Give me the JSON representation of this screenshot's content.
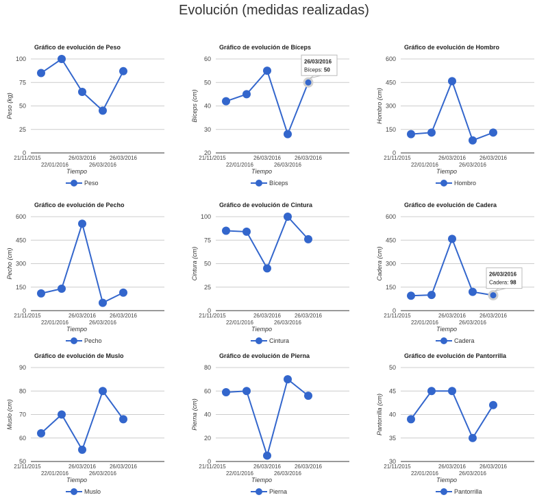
{
  "page_title": "Evolución (medidas realizadas)",
  "x_label": "Tiempo",
  "series_color": "#3366cc",
  "chart_data": [
    {
      "type": "line",
      "title": "Gráfico de evolución de Peso",
      "ylabel": "Peso (kg)",
      "series_name": "Peso",
      "x": [
        "21/11/2015",
        "22/01/2016",
        "26/03/2016",
        "26/03/2016",
        "26/03/2016"
      ],
      "values": [
        85,
        100,
        65,
        45,
        87
      ],
      "yticks": [
        0,
        25,
        50,
        75,
        100
      ],
      "ylim": [
        0,
        100
      ],
      "tooltip": null
    },
    {
      "type": "line",
      "title": "Gráfico de evolución de Bíceps",
      "ylabel": "Bíceps (cm)",
      "series_name": "Bíceps",
      "x": [
        "21/11/2015",
        "22/01/2016",
        "26/03/2016",
        "26/03/2016",
        "26/03/2016"
      ],
      "values": [
        42,
        45,
        55,
        28,
        50
      ],
      "yticks": [
        20,
        30,
        40,
        50,
        60
      ],
      "ylim": [
        20,
        60
      ],
      "tooltip": {
        "date": "26/03/2016",
        "label": "Bíceps",
        "value": "50",
        "index": 4
      }
    },
    {
      "type": "line",
      "title": "Gráfico de evolución de Hombro",
      "ylabel": "Hombro (cm)",
      "series_name": "Hombro",
      "x": [
        "21/11/2015",
        "22/01/2016",
        "26/03/2016",
        "26/03/2016",
        "26/03/2016"
      ],
      "values": [
        120,
        130,
        458,
        80,
        130
      ],
      "yticks": [
        0,
        150,
        300,
        450,
        600
      ],
      "ylim": [
        0,
        600
      ],
      "tooltip": null
    },
    {
      "type": "line",
      "title": "Gráfico de evolución de Pecho",
      "ylabel": "Pecho (cm)",
      "series_name": "Pecho",
      "x": [
        "21/11/2015",
        "22/01/2016",
        "26/03/2016",
        "26/03/2016",
        "26/03/2016"
      ],
      "values": [
        110,
        140,
        555,
        50,
        115
      ],
      "yticks": [
        0,
        150,
        300,
        450,
        600
      ],
      "ylim": [
        0,
        600
      ],
      "tooltip": null
    },
    {
      "type": "line",
      "title": "Gráfico de evolución de Cintura",
      "ylabel": "Cintura (cm)",
      "series_name": "Cintura",
      "x": [
        "21/11/2015",
        "22/01/2016",
        "26/03/2016",
        "26/03/2016",
        "26/03/2016"
      ],
      "values": [
        85,
        84,
        45,
        100,
        76
      ],
      "yticks": [
        0,
        25,
        50,
        75,
        100
      ],
      "ylim": [
        0,
        100
      ],
      "tooltip": null
    },
    {
      "type": "line",
      "title": "Gráfico de evolución de Cadera",
      "ylabel": "Cadera (cm)",
      "series_name": "Cadera",
      "x": [
        "21/11/2015",
        "22/01/2016",
        "26/03/2016",
        "26/03/2016",
        "26/03/2016"
      ],
      "values": [
        95,
        100,
        458,
        120,
        98
      ],
      "yticks": [
        0,
        150,
        300,
        450,
        600
      ],
      "ylim": [
        0,
        600
      ],
      "tooltip": {
        "date": "26/03/2016",
        "label": "Cadera",
        "value": "98",
        "index": 4
      }
    },
    {
      "type": "line",
      "title": "Gráfico de evolución de Muslo",
      "ylabel": "Muslo (cm)",
      "series_name": "Muslo",
      "x": [
        "21/11/2015",
        "22/01/2016",
        "26/03/2016",
        "26/03/2016",
        "26/03/2016"
      ],
      "values": [
        62,
        70,
        55,
        80,
        68
      ],
      "yticks": [
        50,
        60,
        70,
        80,
        90
      ],
      "ylim": [
        50,
        90
      ],
      "tooltip": null
    },
    {
      "type": "line",
      "title": "Gráfico de evolución de Pierna",
      "ylabel": "Pierna (cm)",
      "series_name": "Pierna",
      "x": [
        "21/11/2015",
        "22/01/2016",
        "26/03/2016",
        "26/03/2016",
        "26/03/2016"
      ],
      "values": [
        59,
        60,
        5,
        70,
        56
      ],
      "yticks": [
        0,
        20,
        40,
        60,
        80
      ],
      "ylim": [
        0,
        80
      ],
      "tooltip": null
    },
    {
      "type": "line",
      "title": "Gráfico de evolución de Pantorrilla",
      "ylabel": "Pantorrilla (cm)",
      "series_name": "Pantorrilla",
      "x": [
        "21/11/2015",
        "22/01/2016",
        "26/03/2016",
        "26/03/2016",
        "26/03/2016"
      ],
      "values": [
        39,
        45,
        45,
        35,
        42
      ],
      "yticks": [
        30,
        35,
        40,
        45,
        50
      ],
      "ylim": [
        30,
        50
      ],
      "tooltip": null
    }
  ]
}
